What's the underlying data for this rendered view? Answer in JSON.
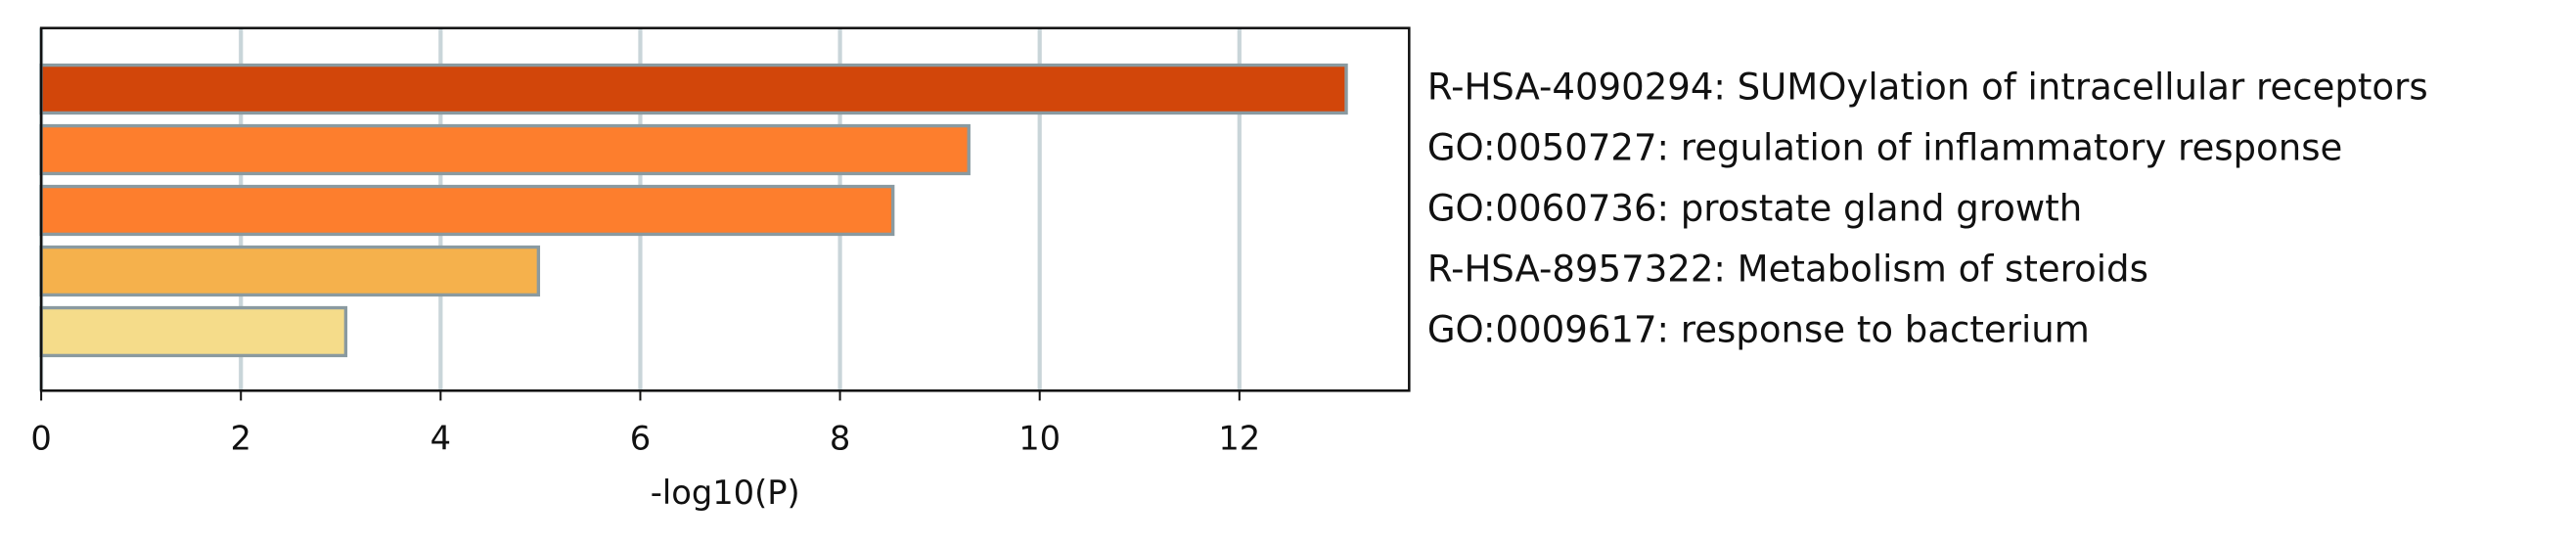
{
  "chart_data": {
    "type": "barh",
    "categories": [
      "R-HSA-4090294: SUMOylation of intracellular receptors",
      "GO:0050727: regulation of inflammatory response",
      "GO:0060736: prostate gland growth",
      "R-HSA-8957322: Metabolism of steroids",
      "GO:0009617: response to bacterium"
    ],
    "values": [
      13.07,
      9.29,
      8.53,
      4.98,
      3.05
    ],
    "colors": [
      "#d2460a",
      "#fd7e2d",
      "#fd7e2d",
      "#f5b14c",
      "#f5dc8a"
    ],
    "xlabel": "-log10(P)",
    "xlim": [
      0,
      13.7
    ],
    "xticks": [
      0,
      2,
      4,
      6,
      8,
      10,
      12
    ],
    "grid": true
  }
}
